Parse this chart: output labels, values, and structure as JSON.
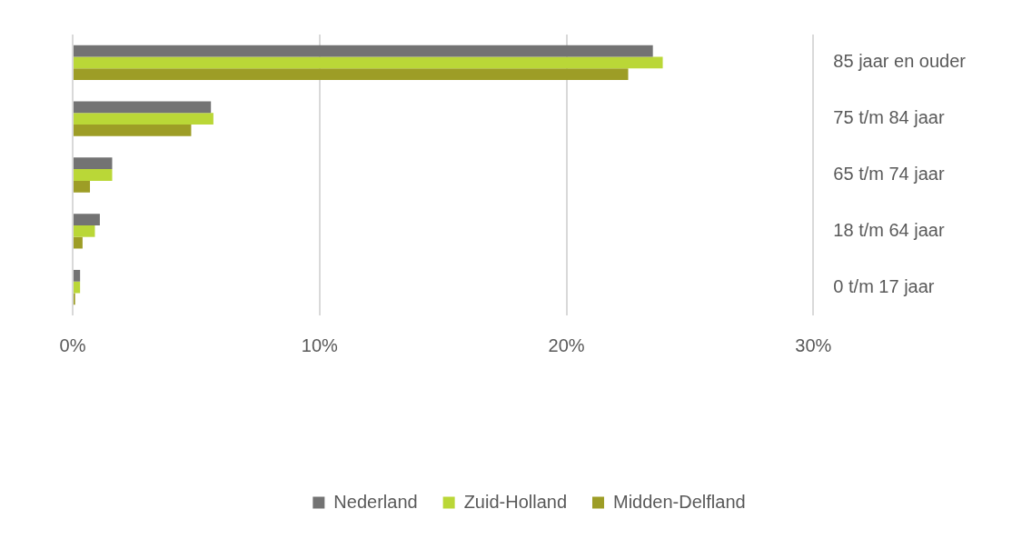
{
  "chart_data": {
    "type": "bar",
    "orientation": "horizontal",
    "categories": [
      "85 jaar en ouder",
      "75 t/m 84 jaar",
      "65 t/m 74 jaar",
      "18 t/m 64 jaar",
      "0 t/m 17 jaar"
    ],
    "series": [
      {
        "name": "Nederland",
        "color": "#737373",
        "values": [
          23.5,
          5.6,
          1.6,
          1.1,
          0.3
        ]
      },
      {
        "name": "Zuid-Holland",
        "color": "#bad737",
        "values": [
          23.9,
          5.7,
          1.6,
          0.9,
          0.3
        ]
      },
      {
        "name": "Midden-Delfland",
        "color": "#9d9d26",
        "values": [
          22.5,
          4.8,
          0.7,
          0.4,
          0.1
        ]
      }
    ],
    "xlim": [
      0,
      30
    ],
    "xticks": [
      {
        "value": 0,
        "label": "0%"
      },
      {
        "value": 10,
        "label": "10%"
      },
      {
        "value": 20,
        "label": "20%"
      },
      {
        "value": 30,
        "label": "30%"
      }
    ],
    "grid": "x",
    "legend": "bottom"
  }
}
